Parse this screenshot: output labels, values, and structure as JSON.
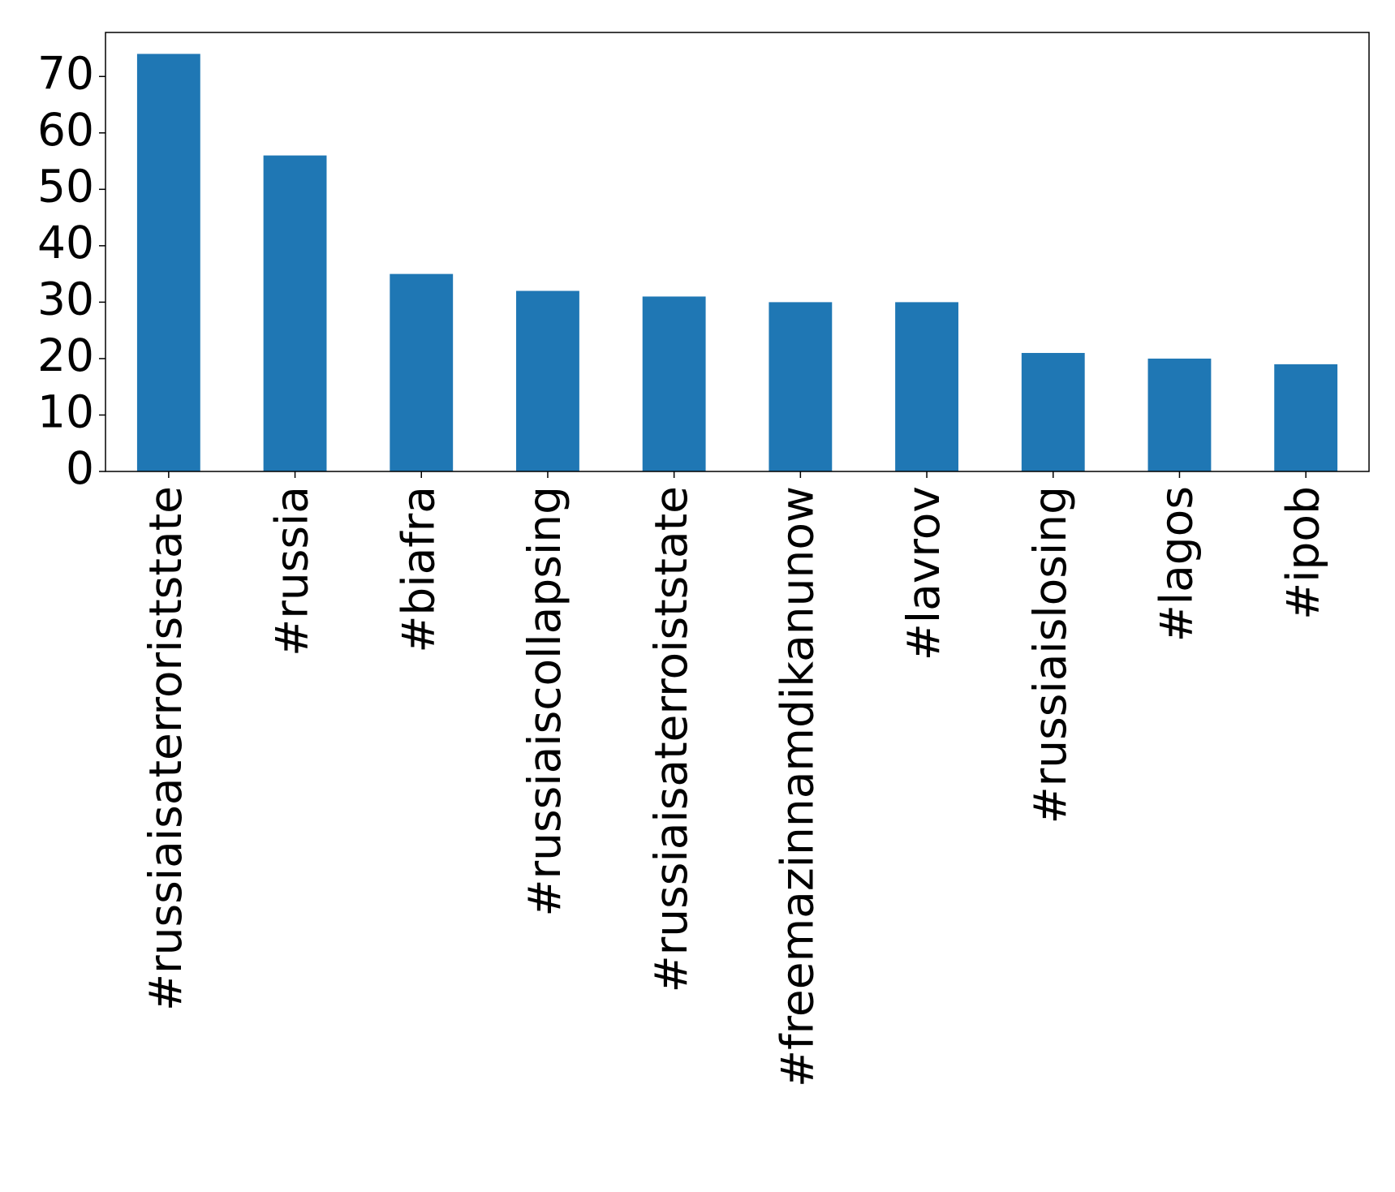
{
  "chart_data": {
    "type": "bar",
    "categories": [
      "#russiaisaterroriststate",
      "#russia",
      "#biafra",
      "#russiaiscollapsing",
      "#russiaisaterroiststate",
      "#freemazinnamdikanunow",
      "#lavrov",
      "#russiaislosing",
      "#lagos",
      "#ipob"
    ],
    "values": [
      74,
      56,
      35,
      32,
      31,
      30,
      30,
      21,
      20,
      19
    ],
    "color": "#1f77b4",
    "ylim": [
      0,
      77.8
    ],
    "yticks": [
      0,
      10,
      20,
      30,
      40,
      50,
      60,
      70
    ],
    "grid": false
  }
}
